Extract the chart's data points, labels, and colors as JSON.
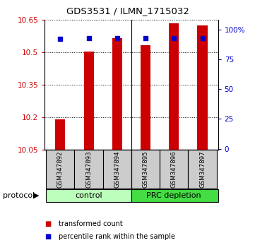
{
  "title": "GDS3531 / ILMN_1715032",
  "samples": [
    "GSM347892",
    "GSM347893",
    "GSM347894",
    "GSM347895",
    "GSM347896",
    "GSM347897"
  ],
  "transformed_counts": [
    10.19,
    10.505,
    10.565,
    10.535,
    10.635,
    10.625
  ],
  "percentile_ranks": [
    92,
    93,
    93,
    93,
    93,
    93
  ],
  "y_min": 10.05,
  "y_max": 10.65,
  "y_ticks": [
    10.05,
    10.2,
    10.35,
    10.5,
    10.65
  ],
  "right_y_ticks": [
    0,
    25,
    50,
    75,
    100
  ],
  "right_y_tick_labels": [
    "0",
    "25",
    "50",
    "75",
    "100%"
  ],
  "bar_color": "#cc0000",
  "dot_color": "#0000cc",
  "bar_width": 0.35,
  "control_color": "#bbffbb",
  "prc_color": "#44dd44",
  "protocol_label": "protocol",
  "legend_bar_label": "transformed count",
  "legend_dot_label": "percentile rank within the sample",
  "bg_color": "#ffffff",
  "plot_bg_color": "#ffffff",
  "tick_label_color_left": "#cc0000",
  "tick_label_color_right": "#0000cc",
  "sample_box_color": "#cccccc"
}
